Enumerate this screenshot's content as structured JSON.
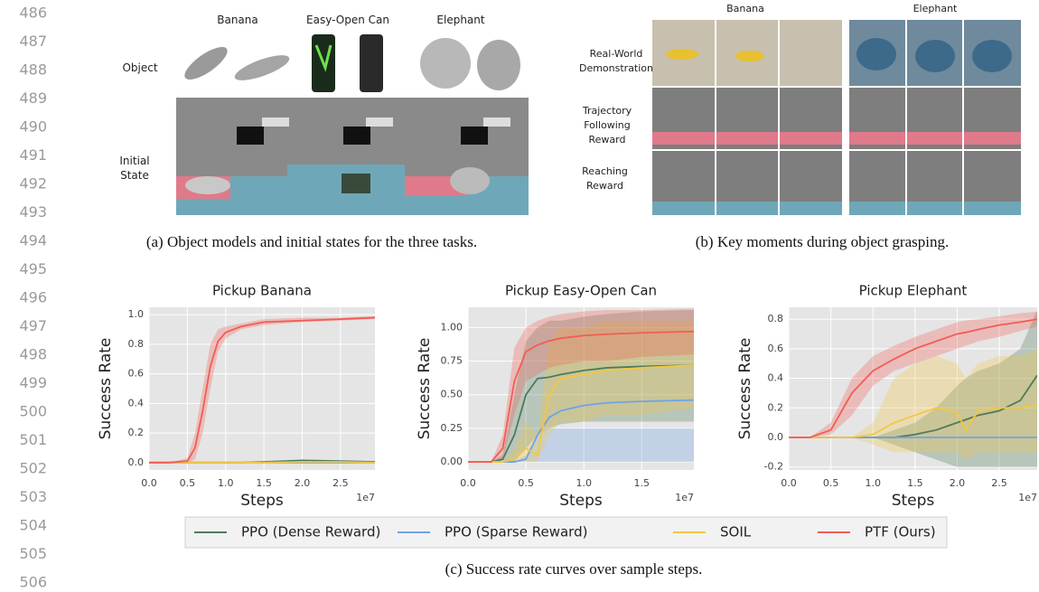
{
  "line_numbers": [
    486,
    487,
    488,
    489,
    490,
    491,
    492,
    493,
    494,
    495,
    496,
    497,
    498,
    499,
    500,
    501,
    502,
    503,
    504,
    505,
    506
  ],
  "panel_a": {
    "column_labels": [
      "Banana",
      "Easy-Open Can",
      "Elephant"
    ],
    "row_labels": [
      "Object",
      "Initial State"
    ],
    "caption": "(a) Object models and initial states for the three tasks."
  },
  "panel_b": {
    "column_labels": [
      "Banana",
      "Elephant"
    ],
    "row_labels": [
      "Real-World Demonstration",
      "Trajectory Following Reward",
      "Reaching Reward"
    ],
    "caption": "(b) Key moments during object grasping."
  },
  "chart_data": [
    {
      "type": "line",
      "title": "Pickup Banana",
      "x_label": "Steps",
      "y_label": "Success Rate",
      "x_offset_label": "1e7",
      "grid": true,
      "x": [
        0,
        0.25,
        0.5,
        0.6,
        0.7,
        0.8,
        0.9,
        1.0,
        1.2,
        1.5,
        2.0,
        2.5,
        2.95
      ],
      "xlim": [
        0,
        2.95
      ],
      "xticks": [
        {
          "value": 0,
          "label": "0.0"
        },
        0.5,
        {
          "value": 1,
          "label": "1.0"
        },
        1.5,
        {
          "value": 2,
          "label": "2.0"
        },
        2.5
      ],
      "ylim": [
        -0.05,
        1.05
      ],
      "yticks": [
        {
          "value": 0,
          "label": "0.0"
        },
        0.2,
        0.4,
        0.6,
        0.8,
        {
          "value": 1,
          "label": "1.0"
        }
      ],
      "series": [
        {
          "name": "PPO (Dense Reward)",
          "color": "#4f7a5a",
          "values": [
            0,
            0,
            0,
            0,
            0,
            0,
            0,
            0,
            0,
            0.005,
            0.015,
            0.01,
            0.005
          ]
        },
        {
          "name": "PPO (Sparse Reward)",
          "color": "#6fa3e8",
          "values": [
            0,
            0,
            0,
            0,
            0,
            0,
            0,
            0,
            0,
            0,
            0,
            0,
            0
          ]
        },
        {
          "name": "SOIL",
          "color": "#f2c744",
          "values": [
            0,
            0,
            0,
            0,
            0,
            0,
            0,
            0,
            0,
            0,
            0.005,
            0.005,
            0
          ]
        },
        {
          "name": "PTF (Ours)",
          "color": "#f25c54",
          "values": [
            0,
            0,
            0.01,
            0.1,
            0.35,
            0.65,
            0.82,
            0.88,
            0.92,
            0.95,
            0.96,
            0.97,
            0.98
          ],
          "lower": [
            0,
            0,
            0,
            0.02,
            0.2,
            0.5,
            0.75,
            0.84,
            0.9,
            0.93,
            0.95,
            0.96,
            0.97
          ],
          "upper": [
            0,
            0,
            0.03,
            0.2,
            0.5,
            0.8,
            0.9,
            0.92,
            0.94,
            0.97,
            0.98,
            0.98,
            0.99
          ]
        }
      ]
    },
    {
      "type": "line",
      "title": "Pickup Easy-Open Can",
      "x_label": "Steps",
      "y_label": "Success Rate",
      "x_offset_label": "1e7",
      "grid": true,
      "x": [
        0,
        0.2,
        0.3,
        0.4,
        0.5,
        0.6,
        0.7,
        0.8,
        1.0,
        1.2,
        1.5,
        1.95
      ],
      "xlim": [
        0,
        1.95
      ],
      "xticks": [
        {
          "value": 0,
          "label": "0.0"
        },
        0.5,
        {
          "value": 1,
          "label": "1.0"
        },
        1.5
      ],
      "ylim": [
        -0.06,
        1.15
      ],
      "yticks": [
        {
          "value": 0,
          "label": "0.00"
        },
        0.25,
        {
          "value": 0.5,
          "label": "0.50"
        },
        0.75,
        {
          "value": 1,
          "label": "1.00"
        }
      ],
      "series": [
        {
          "name": "PPO (Dense Reward)",
          "color": "#4f7a5a",
          "values": [
            0,
            0,
            0.02,
            0.2,
            0.5,
            0.62,
            0.63,
            0.65,
            0.68,
            0.7,
            0.71,
            0.72
          ],
          "lower": [
            0,
            0,
            0,
            0,
            0.1,
            0.2,
            0.25,
            0.28,
            0.3,
            0.3,
            0.3,
            0.3
          ],
          "upper": [
            0,
            0,
            0.05,
            0.5,
            0.9,
            1.0,
            1.05,
            1.05,
            1.08,
            1.1,
            1.12,
            1.13
          ]
        },
        {
          "name": "PPO (Sparse Reward)",
          "color": "#6fa3e8",
          "values": [
            0,
            0,
            0,
            0,
            0.02,
            0.2,
            0.33,
            0.38,
            0.42,
            0.44,
            0.45,
            0.46
          ],
          "lower": [
            0,
            0,
            0,
            0,
            0,
            0,
            0,
            0,
            0,
            0,
            0,
            0
          ],
          "upper": [
            0,
            0,
            0,
            0,
            0.05,
            0.2,
            0.25,
            0.25,
            0.25,
            0.25,
            0.25,
            0.25
          ]
        },
        {
          "name": "SOIL",
          "color": "#f2c744",
          "values": [
            0,
            0,
            0,
            0.02,
            0.1,
            0.05,
            0.5,
            0.62,
            0.65,
            0.68,
            0.7,
            0.72
          ],
          "lower": [
            0,
            0,
            0,
            0,
            0,
            0,
            0.2,
            0.3,
            0.3,
            0.35,
            0.35,
            0.4
          ],
          "upper": [
            0,
            0,
            0,
            0.1,
            0.3,
            0.2,
            0.9,
            1.0,
            1.0,
            1.05,
            1.05,
            1.05
          ]
        },
        {
          "name": "PTF (Ours)",
          "color": "#f25c54",
          "values": [
            0,
            0,
            0.1,
            0.6,
            0.82,
            0.87,
            0.9,
            0.92,
            0.94,
            0.95,
            0.96,
            0.97
          ],
          "lower": [
            0,
            0,
            0.02,
            0.35,
            0.6,
            0.65,
            0.7,
            0.72,
            0.75,
            0.75,
            0.78,
            0.8
          ],
          "upper": [
            0,
            0,
            0.2,
            0.85,
            1.0,
            1.05,
            1.08,
            1.1,
            1.12,
            1.13,
            1.13,
            1.14
          ]
        }
      ]
    },
    {
      "type": "line",
      "title": "Pickup Elephant",
      "x_label": "Steps",
      "y_label": "Success Rate",
      "x_offset_label": "1e7",
      "grid": true,
      "x": [
        0,
        0.25,
        0.5,
        0.75,
        1.0,
        1.25,
        1.5,
        1.75,
        2.0,
        2.1,
        2.25,
        2.5,
        2.75,
        2.95
      ],
      "xlim": [
        0,
        2.95
      ],
      "xticks": [
        {
          "value": 0,
          "label": "0.0"
        },
        0.5,
        {
          "value": 1,
          "label": "1.0"
        },
        1.5,
        {
          "value": 2,
          "label": "2.0"
        },
        2.5
      ],
      "ylim": [
        -0.22,
        0.88
      ],
      "yticks": [
        -0.2,
        {
          "value": 0,
          "label": "0.0"
        },
        0.2,
        0.4,
        0.6,
        0.8
      ],
      "series": [
        {
          "name": "PPO (Dense Reward)",
          "color": "#4f7a5a",
          "values": [
            0,
            0,
            0,
            0,
            0,
            0,
            0.02,
            0.05,
            0.1,
            0.12,
            0.15,
            0.18,
            0.25,
            0.42
          ],
          "lower": [
            0,
            0,
            0,
            0,
            0,
            -0.05,
            -0.1,
            -0.15,
            -0.2,
            -0.2,
            -0.2,
            -0.2,
            -0.2,
            -0.2
          ],
          "upper": [
            0,
            0,
            0,
            0,
            0,
            0.05,
            0.1,
            0.2,
            0.35,
            0.4,
            0.45,
            0.5,
            0.6,
            0.86
          ]
        },
        {
          "name": "PPO (Sparse Reward)",
          "color": "#6fa3e8",
          "values": [
            0,
            0,
            0,
            0,
            0,
            0,
            0,
            0,
            0,
            0,
            0,
            0,
            0,
            0
          ]
        },
        {
          "name": "SOIL",
          "color": "#f2c744",
          "values": [
            0,
            0,
            0,
            0,
            0.02,
            0.1,
            0.15,
            0.2,
            0.17,
            0.05,
            0.18,
            0.2,
            0.2,
            0.22
          ],
          "lower": [
            0,
            0,
            0,
            0,
            -0.05,
            -0.1,
            -0.1,
            -0.1,
            -0.1,
            -0.15,
            -0.1,
            -0.1,
            -0.1,
            -0.1
          ],
          "upper": [
            0,
            0,
            0,
            0,
            0.1,
            0.4,
            0.5,
            0.55,
            0.5,
            0.4,
            0.5,
            0.55,
            0.55,
            0.6
          ]
        },
        {
          "name": "PTF (Ours)",
          "color": "#f25c54",
          "values": [
            0,
            0,
            0.05,
            0.3,
            0.45,
            0.53,
            0.6,
            0.65,
            0.7,
            0.71,
            0.73,
            0.76,
            0.78,
            0.8
          ],
          "lower": [
            0,
            0,
            0.02,
            0.15,
            0.35,
            0.45,
            0.5,
            0.55,
            0.6,
            0.62,
            0.65,
            0.68,
            0.72,
            0.75
          ],
          "upper": [
            0,
            0,
            0.1,
            0.4,
            0.55,
            0.62,
            0.68,
            0.73,
            0.78,
            0.79,
            0.8,
            0.82,
            0.84,
            0.85
          ]
        }
      ]
    }
  ],
  "caption_c": "(c) Success rate curves over sample steps."
}
